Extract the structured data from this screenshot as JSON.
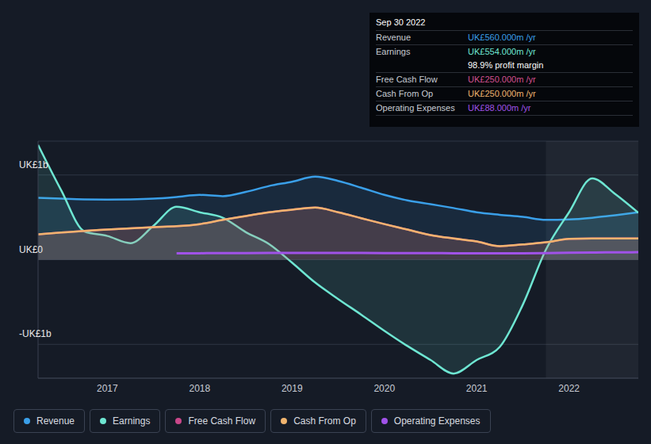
{
  "chart_data": {
    "type": "area",
    "x": [
      2016.25,
      2016.5,
      2016.75,
      2017,
      2017.25,
      2017.5,
      2017.75,
      2018,
      2018.25,
      2018.5,
      2018.75,
      2019,
      2019.25,
      2019.5,
      2019.75,
      2020,
      2020.25,
      2020.5,
      2020.75,
      2021,
      2021.25,
      2021.5,
      2021.75,
      2022,
      2022.25,
      2022.5,
      2022.75
    ],
    "xlim": [
      2016.25,
      2022.75
    ],
    "xticks": [
      2017,
      2018,
      2019,
      2020,
      2021,
      2022
    ],
    "ylim": [
      -1400,
      1400
    ],
    "yticks": [
      {
        "value": -1000,
        "label": "-UK£1b"
      },
      {
        "value": 0,
        "label": "UK£0"
      },
      {
        "value": 1000,
        "label": "UK£1b"
      }
    ],
    "grid": true,
    "legend": "bottom",
    "series": [
      {
        "name": "Revenue",
        "color": "#3a9fe8",
        "type": "area",
        "values": [
          730,
          720,
          712,
          710,
          712,
          720,
          740,
          765,
          750,
          800,
          870,
          920,
          980,
          930,
          850,
          765,
          700,
          655,
          610,
          560,
          530,
          505,
          470,
          475,
          495,
          525,
          560
        ]
      },
      {
        "name": "Earnings",
        "color": "#6ee6d2",
        "type": "area",
        "values": [
          1355,
          820,
          335,
          280,
          195,
          400,
          625,
          560,
          495,
          325,
          185,
          -35,
          -270,
          -465,
          -650,
          -840,
          -1020,
          -1185,
          -1345,
          -1185,
          -1030,
          -530,
          120,
          560,
          960,
          775,
          554
        ]
      },
      {
        "name": "Free Cash Flow",
        "color": "#c9478a",
        "type": "area",
        "values": [
          300,
          320,
          340,
          355,
          370,
          385,
          395,
          420,
          470,
          515,
          560,
          590,
          615,
          560,
          490,
          420,
          355,
          290,
          250,
          215,
          160,
          180,
          205,
          245,
          250,
          250,
          250
        ]
      },
      {
        "name": "Cash From Op",
        "color": "#f0b46e",
        "type": "area",
        "values": [
          300,
          320,
          340,
          355,
          370,
          385,
          395,
          420,
          470,
          515,
          560,
          590,
          615,
          560,
          490,
          420,
          355,
          290,
          250,
          215,
          160,
          180,
          205,
          245,
          250,
          250,
          250
        ]
      },
      {
        "name": "Operating Expenses",
        "color": "#a052e8",
        "type": "line",
        "values": [
          null,
          null,
          null,
          null,
          null,
          null,
          75,
          76,
          77,
          78,
          79,
          80,
          80,
          80,
          79,
          78,
          78,
          77,
          76,
          75,
          74,
          75,
          78,
          82,
          85,
          87,
          88
        ]
      }
    ],
    "annotation": {
      "title": "Sep 30 2022",
      "rows": [
        {
          "label": "Revenue",
          "value": "UK£560.000m /yr",
          "color": "#3a9fe8"
        },
        {
          "label": "Earnings",
          "value": "UK£554.000m /yr",
          "color": "#6ee6d2"
        },
        {
          "label": "",
          "value": "98.9% profit margin",
          "color": "#ffffff"
        },
        {
          "label": "Free Cash Flow",
          "value": "UK£250.000m /yr",
          "color": "#d4508f"
        },
        {
          "label": "Cash From Op",
          "value": "UK£250.000m /yr",
          "color": "#f0b46e"
        },
        {
          "label": "Operating Expenses",
          "value": "UK£88.000m /yr",
          "color": "#a052e8"
        }
      ]
    }
  }
}
